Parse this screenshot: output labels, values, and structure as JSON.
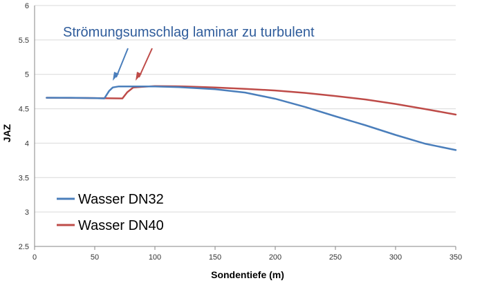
{
  "chart_data": {
    "type": "line",
    "title": "",
    "xlabel": "Sondentiefe (m)",
    "ylabel": "JAZ",
    "xlim": [
      0,
      350
    ],
    "ylim": [
      2.5,
      6
    ],
    "x_ticks": [
      0,
      50,
      100,
      150,
      200,
      250,
      300,
      350
    ],
    "y_ticks": [
      2.5,
      3,
      3.5,
      4,
      4.5,
      5,
      5.5,
      6
    ],
    "grid": "horizontal",
    "legend_position": "bottom-left",
    "annotation": {
      "text": "Strömungsumschlag laminar zu turbulent",
      "color": "#2f5c9b"
    },
    "series": [
      {
        "name": "Wasser DN32",
        "color": "#4a7ebb",
        "points": [
          [
            10,
            4.66
          ],
          [
            30,
            4.66
          ],
          [
            50,
            4.655
          ],
          [
            58,
            4.65
          ],
          [
            62,
            4.76
          ],
          [
            65,
            4.81
          ],
          [
            70,
            4.825
          ],
          [
            100,
            4.825
          ],
          [
            120,
            4.815
          ],
          [
            150,
            4.785
          ],
          [
            175,
            4.735
          ],
          [
            200,
            4.645
          ],
          [
            225,
            4.525
          ],
          [
            250,
            4.39
          ],
          [
            275,
            4.26
          ],
          [
            300,
            4.12
          ],
          [
            325,
            3.99
          ],
          [
            350,
            3.9
          ]
        ]
      },
      {
        "name": "Wasser DN40",
        "color": "#be4b48",
        "points": [
          [
            10,
            4.66
          ],
          [
            50,
            4.655
          ],
          [
            73,
            4.65
          ],
          [
            77,
            4.74
          ],
          [
            82,
            4.81
          ],
          [
            90,
            4.82
          ],
          [
            100,
            4.83
          ],
          [
            125,
            4.825
          ],
          [
            150,
            4.81
          ],
          [
            175,
            4.79
          ],
          [
            200,
            4.765
          ],
          [
            225,
            4.73
          ],
          [
            250,
            4.685
          ],
          [
            275,
            4.635
          ],
          [
            300,
            4.57
          ],
          [
            325,
            4.495
          ],
          [
            350,
            4.415
          ]
        ]
      }
    ]
  }
}
